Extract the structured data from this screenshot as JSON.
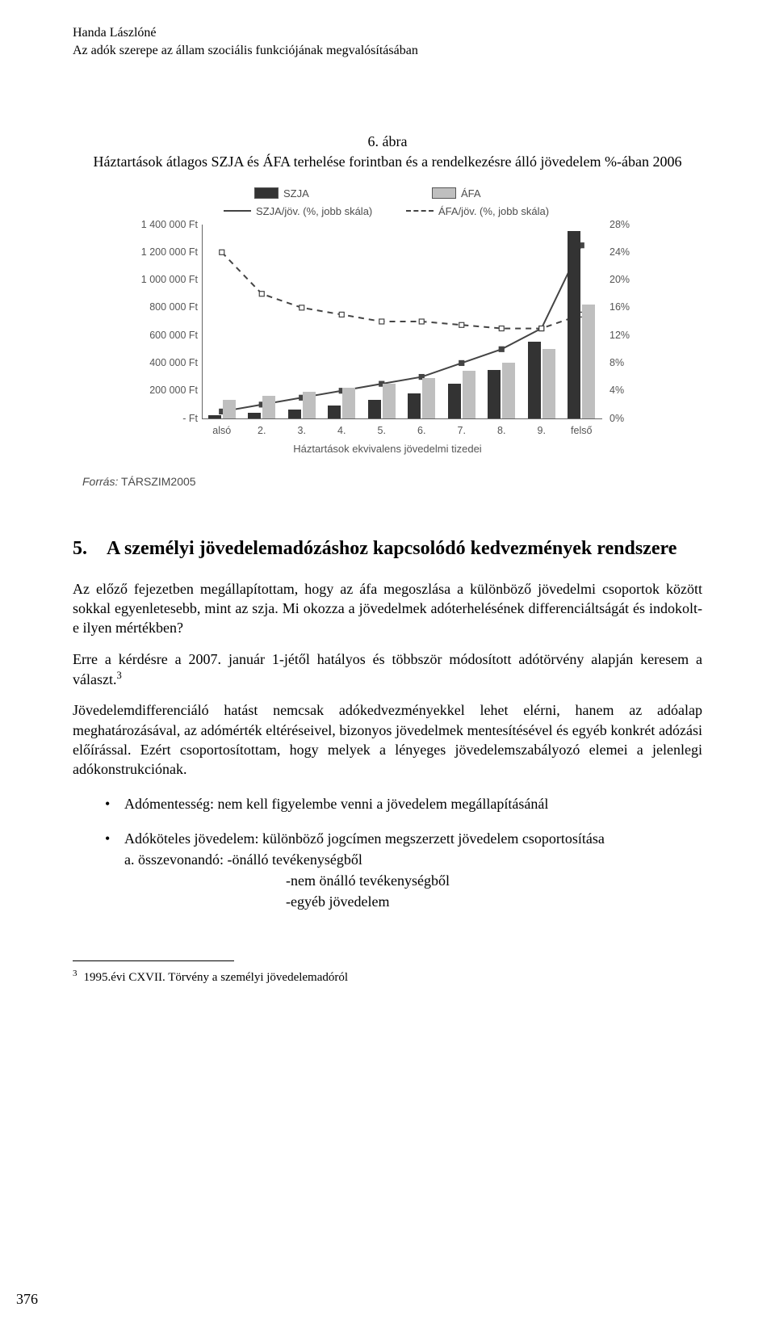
{
  "running_head": {
    "author": "Handa Lászlóné",
    "title": "Az adók szerepe az állam szociális funkciójának megvalósításában"
  },
  "figure": {
    "caption_line1": "6. ábra",
    "caption_line2": "Háztartások átlagos SZJA és ÁFA terhelése forintban és a rendelkezésre álló jövedelem %-ában 2006",
    "source_label": "Forrás:",
    "source_value": "TÁRSZIM2005",
    "chart": {
      "type": "bar+line",
      "legend": {
        "szja": "SZJA",
        "afa": "ÁFA",
        "szja_line": "SZJA/jöv. (%, jobb skála)",
        "afa_line": "ÁFA/jöv. (%, jobb skála)"
      },
      "y_left": {
        "ticks": [
          "1 400 000 Ft",
          "1 200 000 Ft",
          "1 000 000 Ft",
          "800 000 Ft",
          "600 000 Ft",
          "400 000 Ft",
          "200 000 Ft",
          "-   Ft"
        ],
        "max": 1400000
      },
      "y_right": {
        "ticks": [
          "28%",
          "24%",
          "20%",
          "16%",
          "12%",
          "8%",
          "4%",
          "0%"
        ],
        "max": 28
      },
      "x": {
        "categories": [
          "alsó",
          "2.",
          "3.",
          "4.",
          "5.",
          "6.",
          "7.",
          "8.",
          "9.",
          "felső"
        ],
        "title": "Háztartások ekvivalens jövedelmi tizedei"
      },
      "bars_szja": [
        20000,
        40000,
        60000,
        90000,
        130000,
        180000,
        250000,
        350000,
        550000,
        1350000
      ],
      "bars_afa": [
        130000,
        160000,
        190000,
        220000,
        250000,
        290000,
        340000,
        400000,
        500000,
        820000
      ],
      "line_szja_pct": [
        1,
        2,
        3,
        4,
        5,
        6,
        8,
        10,
        13,
        25
      ],
      "line_afa_pct": [
        24,
        18,
        16,
        15,
        14,
        14,
        13.5,
        13,
        13,
        15
      ],
      "colors": {
        "bar_dark": "#333333",
        "bar_light": "#bfbfbf",
        "axis": "#666666",
        "line": "#444444",
        "text": "#555555"
      },
      "font_family": "Arial",
      "font_size_pt": 9
    }
  },
  "section": {
    "number": "5.",
    "heading": "A személyi jövedelemadózáshoz kapcsolódó kedvezmények rendszere"
  },
  "paragraphs": {
    "p1": "Az előző fejezetben megállapítottam, hogy az áfa megoszlása a különböző jövedelmi csoportok között sokkal egyenletesebb, mint az szja. Mi okozza a jövedelmek adóterhelésének differenciáltságát és indokolt-e ilyen mértékben?",
    "p2_a": "Erre a kérdésre a 2007. január 1-jétől hatályos és többször módosított adótörvény alapján keresem a választ.",
    "p2_sup": "3",
    "p3": "Jövedelemdifferenciáló hatást nemcsak adókedvezményekkel lehet elérni, hanem az adóalap meghatározásával, az adómérték eltéréseivel, bizonyos jövedelmek mentesítésével és egyéb konkrét adózási előírással. Ezért csoportosítottam, hogy melyek a lényeges jövedelemszabályozó elemei a jelenlegi adókonstrukciónak."
  },
  "bullets": {
    "b1": "Adómentesség: nem kell figyelembe venni a jövedelem megállapításánál",
    "b2": "Adóköteles jövedelem: különböző jogcímen megszerzett jövedelem csoportosítása",
    "b2_a": "a. összevonandó: -önálló tevékenységből",
    "b2_a_l2": "-nem önálló tevékenységből",
    "b2_a_l3": "-egyéb jövedelem"
  },
  "footnote": {
    "num": "3",
    "text": "1995.évi CXVII. Törvény a személyi jövedelemadóról"
  },
  "page_number": "376"
}
